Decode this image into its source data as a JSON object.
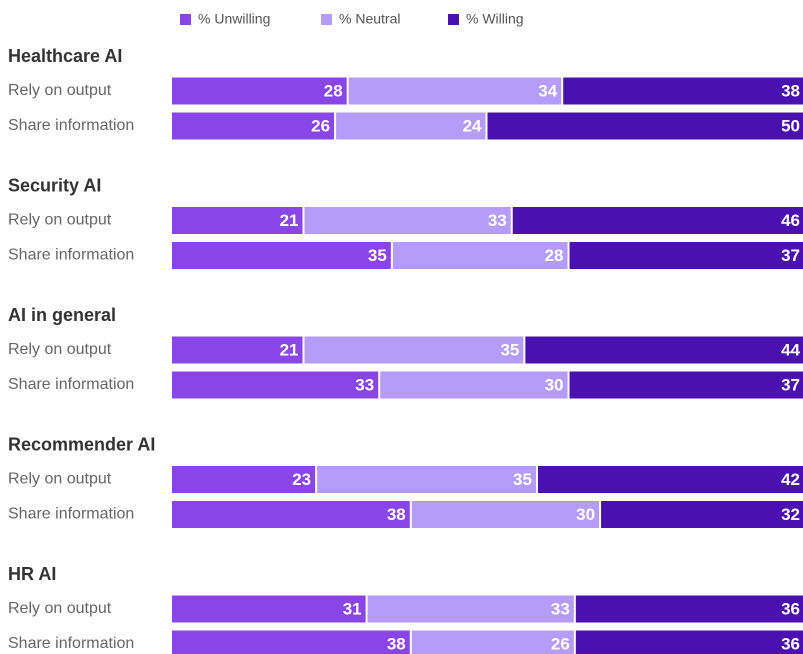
{
  "chart_data": {
    "type": "bar",
    "orientation": "horizontal",
    "stacked": true,
    "groups": [
      {
        "name": "Healthcare AI",
        "categories": [
          "Rely on output",
          "Share information"
        ]
      },
      {
        "name": "Security AI",
        "categories": [
          "Rely on output",
          "Share information"
        ]
      },
      {
        "name": "AI in general",
        "categories": [
          "Rely on output",
          "Share information"
        ]
      },
      {
        "name": "Recommender AI",
        "categories": [
          "Rely on output",
          "Share information"
        ]
      },
      {
        "name": "HR AI",
        "categories": [
          "Rely on output",
          "Share information"
        ]
      }
    ],
    "series": [
      {
        "name": "% Unwilling",
        "color": "#8a45e8",
        "values": [
          28,
          26,
          21,
          35,
          21,
          33,
          23,
          38,
          31,
          38
        ]
      },
      {
        "name": "% Neutral",
        "color": "#b59cf8",
        "values": [
          34,
          24,
          33,
          28,
          35,
          30,
          35,
          30,
          33,
          26
        ]
      },
      {
        "name": "% Willing",
        "color": "#4a10b0",
        "values": [
          38,
          50,
          46,
          37,
          44,
          37,
          42,
          32,
          36,
          36
        ]
      }
    ],
    "xlim": [
      0,
      100
    ]
  }
}
